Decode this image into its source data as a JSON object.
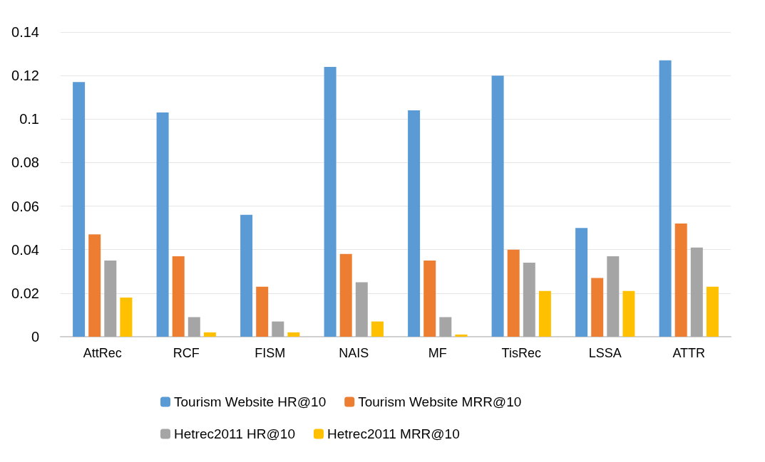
{
  "chart_data": {
    "type": "bar",
    "categories": [
      "AttRec",
      "RCF",
      "FISM",
      "NAIS",
      "MF",
      "TisRec",
      "LSSA",
      "ATTR"
    ],
    "series": [
      {
        "name": "Tourism Website HR@10",
        "color": "#5b9bd5",
        "values": [
          0.117,
          0.103,
          0.056,
          0.124,
          0.104,
          0.12,
          0.05,
          0.127
        ]
      },
      {
        "name": "Tourism Website MRR@10",
        "color": "#ed7d31",
        "values": [
          0.047,
          0.037,
          0.023,
          0.038,
          0.035,
          0.04,
          0.027,
          0.052
        ]
      },
      {
        "name": "Hetrec2011 HR@10",
        "color": "#a5a5a5",
        "values": [
          0.035,
          0.009,
          0.007,
          0.025,
          0.009,
          0.034,
          0.037,
          0.041
        ]
      },
      {
        "name": "Hetrec2011 MRR@10",
        "color": "#ffc000",
        "values": [
          0.018,
          0.002,
          0.002,
          0.007,
          0.001,
          0.021,
          0.021,
          0.023
        ]
      }
    ],
    "ylim": [
      0,
      0.14
    ],
    "yticks": [
      0,
      0.02,
      0.04,
      0.06,
      0.08,
      0.1,
      0.12,
      0.14
    ],
    "grid": "y",
    "legend": "bottom"
  }
}
